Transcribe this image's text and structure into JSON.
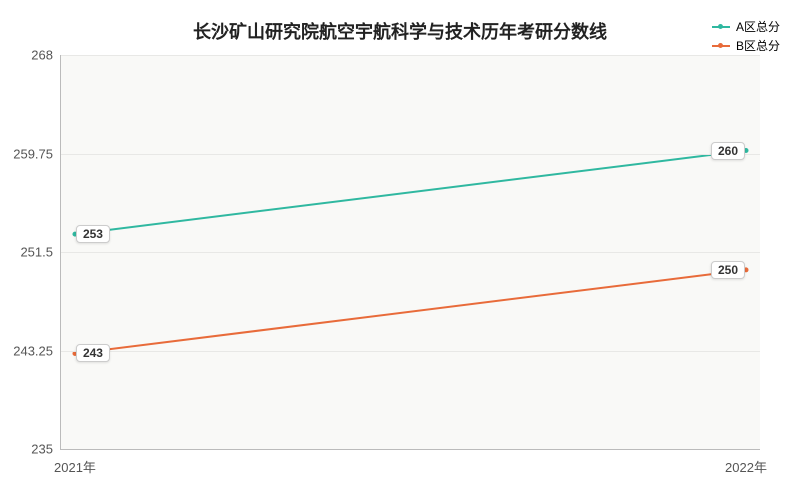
{
  "chart": {
    "type": "line",
    "title": "长沙矿山研究院航空宇航科学与技术历年考研分数线",
    "title_fontsize": 18,
    "title_color": "#222222",
    "background_color": "#f9f9f7",
    "outer_background_color": "#ffffff",
    "grid_color": "#e8e8e6",
    "axis_color": "#bbbbbb",
    "tick_label_color": "#555555",
    "tick_fontsize": 13,
    "xlim": [
      0,
      1
    ],
    "ylim": [
      235,
      268
    ],
    "yticks": [
      235,
      243.25,
      251.5,
      259.75,
      268
    ],
    "xtick_labels": [
      "2021年",
      "2022年"
    ],
    "legend": {
      "position": "top-right",
      "fontsize": 12,
      "items": [
        {
          "label": "A区总分",
          "color": "#2fb8a0"
        },
        {
          "label": "B区总分",
          "color": "#e86b3a"
        }
      ]
    },
    "series": [
      {
        "name": "A区总分",
        "color": "#2fb8a0",
        "line_width": 2,
        "marker": "circle",
        "marker_size": 5,
        "x": [
          0,
          1
        ],
        "y": [
          253,
          260
        ],
        "point_labels": [
          "253",
          "260"
        ]
      },
      {
        "name": "B区总分",
        "color": "#e86b3a",
        "line_width": 2,
        "marker": "circle",
        "marker_size": 5,
        "x": [
          0,
          1
        ],
        "y": [
          243,
          250
        ],
        "point_labels": [
          "243",
          "250"
        ]
      }
    ]
  }
}
